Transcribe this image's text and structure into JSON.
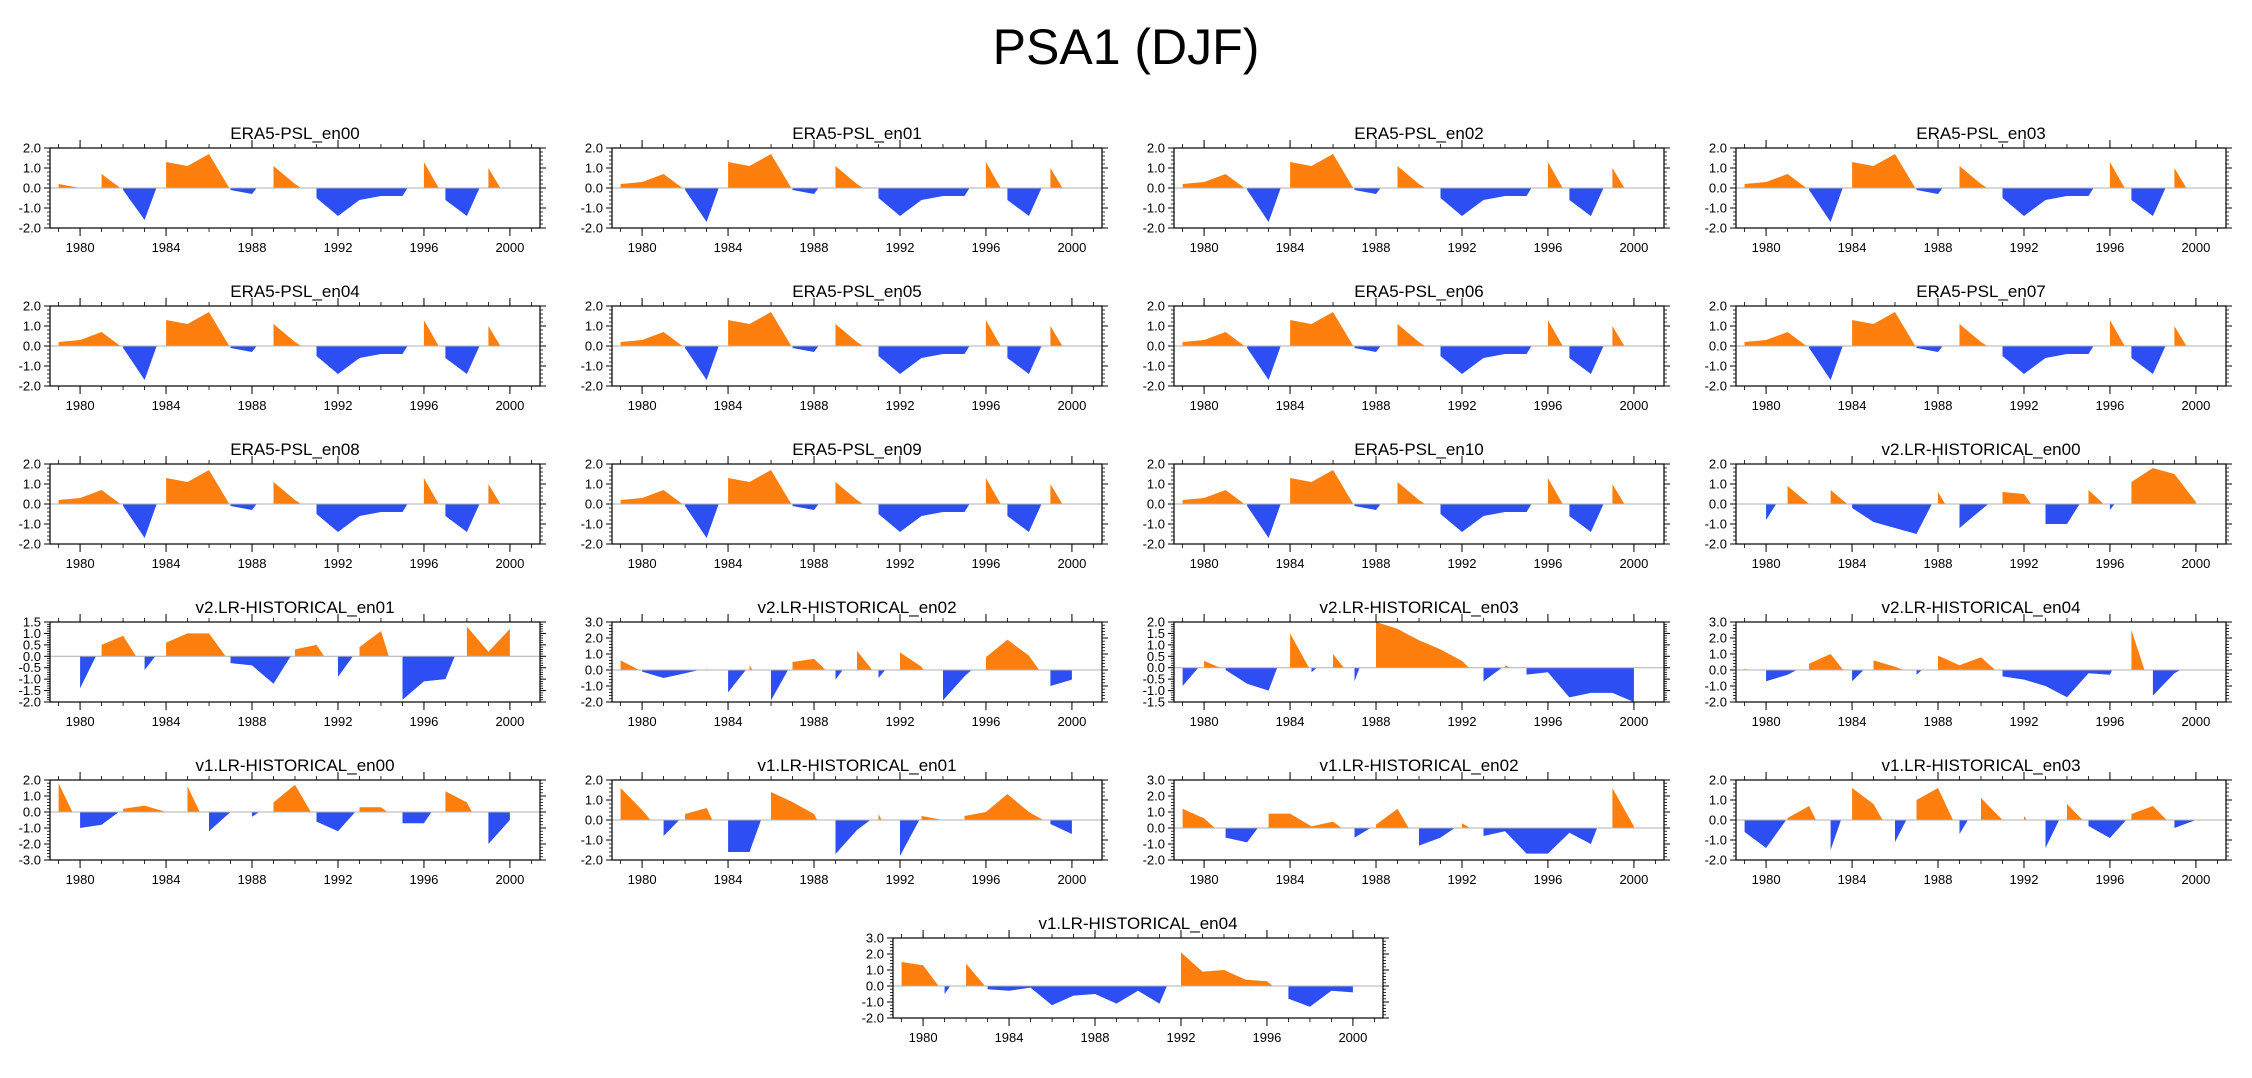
{
  "title": "PSA1 (DJF)",
  "colors": {
    "positive": "#ff7f0e",
    "negative": "#2c4ef2",
    "axis": "#000000",
    "zero_line": "#b0b0b0"
  },
  "chart_data": [
    {
      "type": "area",
      "title": "ERA5-PSL_en00",
      "x_start": 1979,
      "ylim": [
        -2.0,
        2.0
      ],
      "yticks": [
        "2.0",
        "1.0",
        "0.0",
        "-1.0",
        "-2.0"
      ],
      "xticks": [
        "1980",
        "1984",
        "1988",
        "1992",
        "1996",
        "2000"
      ],
      "values": [
        0.2,
        0.0,
        0.7,
        -0.1,
        -1.6,
        1.3,
        1.1,
        1.7,
        -0.1,
        -0.3,
        1.1,
        0.2,
        -0.5,
        -1.4,
        -0.6,
        -0.4,
        -0.4,
        1.3,
        -0.6,
        -1.4,
        1.0,
        -0.8
      ]
    },
    {
      "type": "area",
      "title": "ERA5-PSL_en01",
      "x_start": 1979,
      "ylim": [
        -2.0,
        2.0
      ],
      "yticks": [
        "2.0",
        "1.0",
        "0.0",
        "-1.0",
        "-2.0"
      ],
      "xticks": [
        "1980",
        "1984",
        "1988",
        "1992",
        "1996",
        "2000"
      ],
      "values": [
        0.2,
        0.3,
        0.7,
        -0.1,
        -1.7,
        1.3,
        1.1,
        1.7,
        -0.1,
        -0.3,
        1.1,
        0.2,
        -0.5,
        -1.4,
        -0.6,
        -0.4,
        -0.4,
        1.3,
        -0.6,
        -1.4,
        1.0,
        -0.8
      ]
    },
    {
      "type": "area",
      "title": "ERA5-PSL_en02",
      "x_start": 1979,
      "ylim": [
        -2.0,
        2.0
      ],
      "yticks": [
        "2.0",
        "1.0",
        "0.0",
        "-1.0",
        "-2.0"
      ],
      "xticks": [
        "1980",
        "1984",
        "1988",
        "1992",
        "1996",
        "2000"
      ],
      "values": [
        0.2,
        0.3,
        0.7,
        -0.1,
        -1.7,
        1.3,
        1.1,
        1.7,
        -0.1,
        -0.3,
        1.1,
        0.2,
        -0.5,
        -1.4,
        -0.6,
        -0.4,
        -0.4,
        1.3,
        -0.6,
        -1.4,
        1.0,
        -0.8
      ]
    },
    {
      "type": "area",
      "title": "ERA5-PSL_en03",
      "x_start": 1979,
      "ylim": [
        -2.0,
        2.0
      ],
      "yticks": [
        "2.0",
        "1.0",
        "0.0",
        "-1.0",
        "-2.0"
      ],
      "xticks": [
        "1980",
        "1984",
        "1988",
        "1992",
        "1996",
        "2000"
      ],
      "values": [
        0.2,
        0.3,
        0.7,
        -0.1,
        -1.7,
        1.3,
        1.1,
        1.7,
        -0.1,
        -0.3,
        1.1,
        0.2,
        -0.5,
        -1.4,
        -0.6,
        -0.4,
        -0.4,
        1.3,
        -0.6,
        -1.4,
        1.0,
        -0.8
      ]
    },
    {
      "type": "area",
      "title": "ERA5-PSL_en04",
      "x_start": 1979,
      "ylim": [
        -2.0,
        2.0
      ],
      "yticks": [
        "2.0",
        "1.0",
        "0.0",
        "-1.0",
        "-2.0"
      ],
      "xticks": [
        "1980",
        "1984",
        "1988",
        "1992",
        "1996",
        "2000"
      ],
      "values": [
        0.2,
        0.3,
        0.7,
        -0.1,
        -1.7,
        1.3,
        1.1,
        1.7,
        -0.1,
        -0.3,
        1.1,
        0.2,
        -0.5,
        -1.4,
        -0.6,
        -0.4,
        -0.4,
        1.3,
        -0.6,
        -1.4,
        1.0,
        -0.8
      ]
    },
    {
      "type": "area",
      "title": "ERA5-PSL_en05",
      "x_start": 1979,
      "ylim": [
        -2.0,
        2.0
      ],
      "yticks": [
        "2.0",
        "1.0",
        "0.0",
        "-1.0",
        "-2.0"
      ],
      "xticks": [
        "1980",
        "1984",
        "1988",
        "1992",
        "1996",
        "2000"
      ],
      "values": [
        0.2,
        0.3,
        0.7,
        -0.1,
        -1.7,
        1.3,
        1.1,
        1.7,
        -0.1,
        -0.3,
        1.1,
        0.2,
        -0.5,
        -1.4,
        -0.6,
        -0.4,
        -0.4,
        1.3,
        -0.6,
        -1.4,
        1.0,
        -0.8
      ]
    },
    {
      "type": "area",
      "title": "ERA5-PSL_en06",
      "x_start": 1979,
      "ylim": [
        -2.0,
        2.0
      ],
      "yticks": [
        "2.0",
        "1.0",
        "0.0",
        "-1.0",
        "-2.0"
      ],
      "xticks": [
        "1980",
        "1984",
        "1988",
        "1992",
        "1996",
        "2000"
      ],
      "values": [
        0.2,
        0.3,
        0.7,
        -0.1,
        -1.7,
        1.3,
        1.1,
        1.7,
        -0.1,
        -0.3,
        1.1,
        0.2,
        -0.5,
        -1.4,
        -0.6,
        -0.4,
        -0.4,
        1.3,
        -0.6,
        -1.4,
        1.0,
        -0.8
      ]
    },
    {
      "type": "area",
      "title": "ERA5-PSL_en07",
      "x_start": 1979,
      "ylim": [
        -2.0,
        2.0
      ],
      "yticks": [
        "2.0",
        "1.0",
        "0.0",
        "-1.0",
        "-2.0"
      ],
      "xticks": [
        "1980",
        "1984",
        "1988",
        "1992",
        "1996",
        "2000"
      ],
      "values": [
        0.2,
        0.3,
        0.7,
        -0.1,
        -1.7,
        1.3,
        1.1,
        1.7,
        -0.1,
        -0.3,
        1.1,
        0.2,
        -0.5,
        -1.4,
        -0.6,
        -0.4,
        -0.4,
        1.3,
        -0.6,
        -1.4,
        1.0,
        -0.8
      ]
    },
    {
      "type": "area",
      "title": "ERA5-PSL_en08",
      "x_start": 1979,
      "ylim": [
        -2.0,
        2.0
      ],
      "yticks": [
        "2.0",
        "1.0",
        "0.0",
        "-1.0",
        "-2.0"
      ],
      "xticks": [
        "1980",
        "1984",
        "1988",
        "1992",
        "1996",
        "2000"
      ],
      "values": [
        0.2,
        0.3,
        0.7,
        -0.1,
        -1.7,
        1.3,
        1.1,
        1.7,
        -0.1,
        -0.3,
        1.1,
        0.2,
        -0.5,
        -1.4,
        -0.6,
        -0.4,
        -0.4,
        1.3,
        -0.6,
        -1.4,
        1.0,
        -0.8
      ]
    },
    {
      "type": "area",
      "title": "ERA5-PSL_en09",
      "x_start": 1979,
      "ylim": [
        -2.0,
        2.0
      ],
      "yticks": [
        "2.0",
        "1.0",
        "0.0",
        "-1.0",
        "-2.0"
      ],
      "xticks": [
        "1980",
        "1984",
        "1988",
        "1992",
        "1996",
        "2000"
      ],
      "values": [
        0.2,
        0.3,
        0.7,
        -0.1,
        -1.7,
        1.3,
        1.1,
        1.7,
        -0.1,
        -0.3,
        1.1,
        0.2,
        -0.5,
        -1.4,
        -0.6,
        -0.4,
        -0.4,
        1.3,
        -0.6,
        -1.4,
        1.0,
        -0.8
      ]
    },
    {
      "type": "area",
      "title": "ERA5-PSL_en10",
      "x_start": 1979,
      "ylim": [
        -2.0,
        2.0
      ],
      "yticks": [
        "2.0",
        "1.0",
        "0.0",
        "-1.0",
        "-2.0"
      ],
      "xticks": [
        "1980",
        "1984",
        "1988",
        "1992",
        "1996",
        "2000"
      ],
      "values": [
        0.2,
        0.3,
        0.7,
        -0.1,
        -1.7,
        1.3,
        1.1,
        1.7,
        -0.1,
        -0.3,
        1.1,
        0.2,
        -0.5,
        -1.4,
        -0.6,
        -0.4,
        -0.4,
        1.3,
        -0.6,
        -1.4,
        1.0,
        -0.8
      ]
    },
    {
      "type": "area",
      "title": "v2.LR-HISTORICAL_en00",
      "x_start": 1979,
      "ylim": [
        -2.0,
        2.0
      ],
      "yticks": [
        "2.0",
        "1.0",
        "0.0",
        "-1.0",
        "-2.0"
      ],
      "xticks": [
        "1980",
        "1984",
        "1988",
        "1992",
        "1996",
        "2000"
      ],
      "values": [
        0.0,
        -0.8,
        0.9,
        0.0,
        0.7,
        -0.2,
        -0.9,
        -1.2,
        -1.5,
        0.6,
        -1.2,
        -0.3,
        0.6,
        0.5,
        -1.0,
        -1.0,
        0.7,
        -0.3,
        1.1,
        1.8,
        1.5,
        0.1
      ]
    },
    {
      "type": "area",
      "title": "v2.LR-HISTORICAL_en01",
      "x_start": 1979,
      "ylim": [
        -2.0,
        1.5
      ],
      "yticks": [
        "1.5",
        "1.0",
        "0.5",
        "0.0",
        "-0.5",
        "-1.0",
        "-1.5",
        "-2.0"
      ],
      "xticks": [
        "1980",
        "1984",
        "1988",
        "1992",
        "1996",
        "2000"
      ],
      "values": [
        0.0,
        -1.4,
        0.5,
        0.9,
        -0.6,
        0.6,
        1.0,
        1.0,
        -0.3,
        -0.4,
        -1.2,
        0.3,
        0.5,
        -0.9,
        0.4,
        1.1,
        -1.9,
        -1.1,
        -1.0,
        1.3,
        0.2,
        1.2
      ]
    },
    {
      "type": "area",
      "title": "v2.LR-HISTORICAL_en02",
      "x_start": 1979,
      "ylim": [
        -2.0,
        3.0
      ],
      "yticks": [
        "3.0",
        "2.0",
        "1.0",
        "0.0",
        "-1.0",
        "-2.0"
      ],
      "xticks": [
        "1980",
        "1984",
        "1988",
        "1992",
        "1996",
        "2000"
      ],
      "values": [
        0.6,
        -0.1,
        -0.5,
        -0.2,
        0.1,
        -1.4,
        0.3,
        -1.9,
        0.5,
        0.7,
        -0.6,
        1.2,
        -0.5,
        1.1,
        0.2,
        -1.9,
        -0.4,
        0.8,
        1.9,
        0.9,
        -1.0,
        -0.6
      ]
    },
    {
      "type": "area",
      "title": "v2.LR-HISTORICAL_en03",
      "x_start": 1979,
      "ylim": [
        -1.5,
        2.0
      ],
      "yticks": [
        "2.0",
        "1.5",
        "1.0",
        "0.5",
        "0.0",
        "-0.5",
        "-1.0",
        "-1.5"
      ],
      "xticks": [
        "1980",
        "1984",
        "1988",
        "1992",
        "1996",
        "2000"
      ],
      "values": [
        -0.8,
        0.3,
        -0.1,
        -0.7,
        -1.0,
        1.5,
        -0.2,
        0.6,
        -0.6,
        2.0,
        1.7,
        1.2,
        0.8,
        0.3,
        -0.6,
        0.1,
        -0.3,
        -0.2,
        -1.3,
        -1.1,
        -1.1,
        -1.5
      ]
    },
    {
      "type": "area",
      "title": "v2.LR-HISTORICAL_en04",
      "x_start": 1979,
      "ylim": [
        -2.0,
        3.0
      ],
      "yticks": [
        "3.0",
        "2.0",
        "1.0",
        "0.0",
        "-1.0",
        "-2.0"
      ],
      "xticks": [
        "1980",
        "1984",
        "1988",
        "1992",
        "1996",
        "2000"
      ],
      "values": [
        0.1,
        -0.7,
        -0.3,
        0.4,
        1.0,
        -0.7,
        0.6,
        0.2,
        -0.3,
        0.9,
        0.3,
        0.8,
        -0.4,
        -0.6,
        -1.0,
        -1.7,
        -0.2,
        -0.3,
        2.5,
        -1.6,
        -0.2,
        0.5
      ]
    },
    {
      "type": "area",
      "title": "v1.LR-HISTORICAL_en00",
      "x_start": 1979,
      "ylim": [
        -3.0,
        2.0
      ],
      "yticks": [
        "2.0",
        "1.0",
        "0.0",
        "-1.0",
        "-2.0",
        "-3.0"
      ],
      "xticks": [
        "1980",
        "1984",
        "1988",
        "1992",
        "1996",
        "2000"
      ],
      "values": [
        1.8,
        -1.0,
        -0.8,
        0.2,
        0.4,
        0.0,
        1.6,
        -1.2,
        0.0,
        -0.3,
        0.6,
        1.7,
        -0.6,
        -1.2,
        0.3,
        0.3,
        -0.7,
        -0.7,
        1.3,
        0.6,
        -2.0,
        -0.5
      ]
    },
    {
      "type": "area",
      "title": "v1.LR-HISTORICAL_en01",
      "x_start": 1979,
      "ylim": [
        -2.0,
        2.0
      ],
      "yticks": [
        "2.0",
        "1.0",
        "0.0",
        "-1.0",
        "-2.0"
      ],
      "xticks": [
        "1980",
        "1984",
        "1988",
        "1992",
        "1996",
        "2000"
      ],
      "values": [
        1.6,
        0.5,
        -0.8,
        0.3,
        0.6,
        -1.6,
        -1.6,
        1.4,
        0.9,
        0.3,
        -1.7,
        -0.5,
        0.3,
        -1.8,
        0.2,
        0.0,
        0.2,
        0.4,
        1.3,
        0.4,
        -0.2,
        -0.7
      ]
    },
    {
      "type": "area",
      "title": "v1.LR-HISTORICAL_en02",
      "x_start": 1979,
      "ylim": [
        -2.0,
        3.0
      ],
      "yticks": [
        "3.0",
        "2.0",
        "1.0",
        "0.0",
        "-1.0",
        "-2.0"
      ],
      "xticks": [
        "1980",
        "1984",
        "1988",
        "1992",
        "1996",
        "2000"
      ],
      "values": [
        1.2,
        0.6,
        -0.6,
        -0.9,
        0.9,
        0.9,
        0.1,
        0.4,
        -0.6,
        0.2,
        1.2,
        -1.1,
        -0.6,
        0.3,
        -0.5,
        -0.2,
        -1.6,
        -1.6,
        -0.3,
        -1.0,
        2.5,
        0.1
      ]
    },
    {
      "type": "area",
      "title": "v1.LR-HISTORICAL_en03",
      "x_start": 1979,
      "ylim": [
        -2.0,
        2.0
      ],
      "yticks": [
        "2.0",
        "1.0",
        "0.0",
        "-1.0",
        "-2.0"
      ],
      "xticks": [
        "1980",
        "1984",
        "1988",
        "1992",
        "1996",
        "2000"
      ],
      "values": [
        -0.6,
        -1.4,
        0.1,
        0.7,
        -1.5,
        1.6,
        0.8,
        -1.1,
        1.0,
        1.6,
        -0.7,
        1.1,
        0.0,
        0.2,
        -1.4,
        0.8,
        -0.3,
        -0.9,
        0.3,
        0.7,
        -0.4,
        0.0
      ]
    },
    {
      "type": "area",
      "title": "v1.LR-HISTORICAL_en04",
      "x_start": 1979,
      "ylim": [
        -2.0,
        3.0
      ],
      "yticks": [
        "3.0",
        "2.0",
        "1.0",
        "0.0",
        "-1.0",
        "-2.0"
      ],
      "xticks": [
        "1980",
        "1984",
        "1988",
        "1992",
        "1996",
        "2000"
      ],
      "values": [
        1.5,
        1.3,
        -0.5,
        1.4,
        -0.2,
        -0.3,
        -0.1,
        -1.2,
        -0.6,
        -0.5,
        -1.1,
        -0.3,
        -1.1,
        2.1,
        0.9,
        1.0,
        0.4,
        0.3,
        -0.8,
        -1.3,
        -0.3,
        -0.4
      ]
    }
  ]
}
